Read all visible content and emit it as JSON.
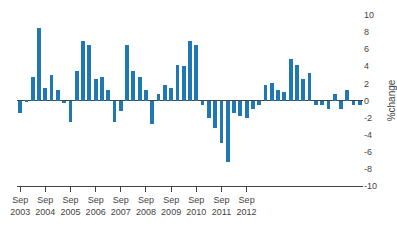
{
  "chart_data": {
    "type": "bar",
    "categories": [
      "Sep\n2003",
      null,
      null,
      null,
      "Sep\n2004",
      null,
      null,
      null,
      "Sep\n2005",
      null,
      null,
      null,
      "Sep\n2006",
      null,
      null,
      null,
      "Sep\n2007",
      null,
      null,
      null,
      "Sep\n2008",
      null,
      null,
      null,
      "Sep\n2009",
      null,
      null,
      null,
      "Sep\n2010",
      null,
      null,
      null,
      "Sep\n2011",
      null,
      null,
      null,
      "Sep\n2012",
      null,
      null,
      null,
      null,
      null,
      null,
      null,
      null,
      null,
      null,
      null,
      null,
      null,
      null,
      null,
      null,
      null,
      null
    ],
    "values": [
      -1.5,
      -0.2,
      2.8,
      8.5,
      1.5,
      3.0,
      1.2,
      -0.3,
      -2.5,
      3.5,
      7.0,
      6.5,
      2.5,
      2.8,
      1.2,
      -2.5,
      -1.2,
      6.5,
      3.5,
      2.8,
      1.2,
      -2.8,
      0.8,
      1.8,
      1.5,
      4.2,
      4.0,
      7.0,
      6.5,
      -0.5,
      -2.0,
      -3.2,
      -5.0,
      -7.2,
      -1.5,
      -1.8,
      -2.0,
      -1.0,
      -0.5,
      1.8,
      2.0,
      1.2,
      1.0,
      4.8,
      4.2,
      2.5,
      3.2,
      -0.5,
      -0.5,
      -1.0,
      0.8,
      -1.0,
      1.2,
      -0.5,
      -0.5
    ],
    "ylabel": "%change",
    "ylim": [
      -10,
      10
    ],
    "yticks": [
      -10,
      -8,
      -6,
      -4,
      -2,
      0,
      2,
      4,
      6,
      8,
      10
    ],
    "grid": false
  }
}
